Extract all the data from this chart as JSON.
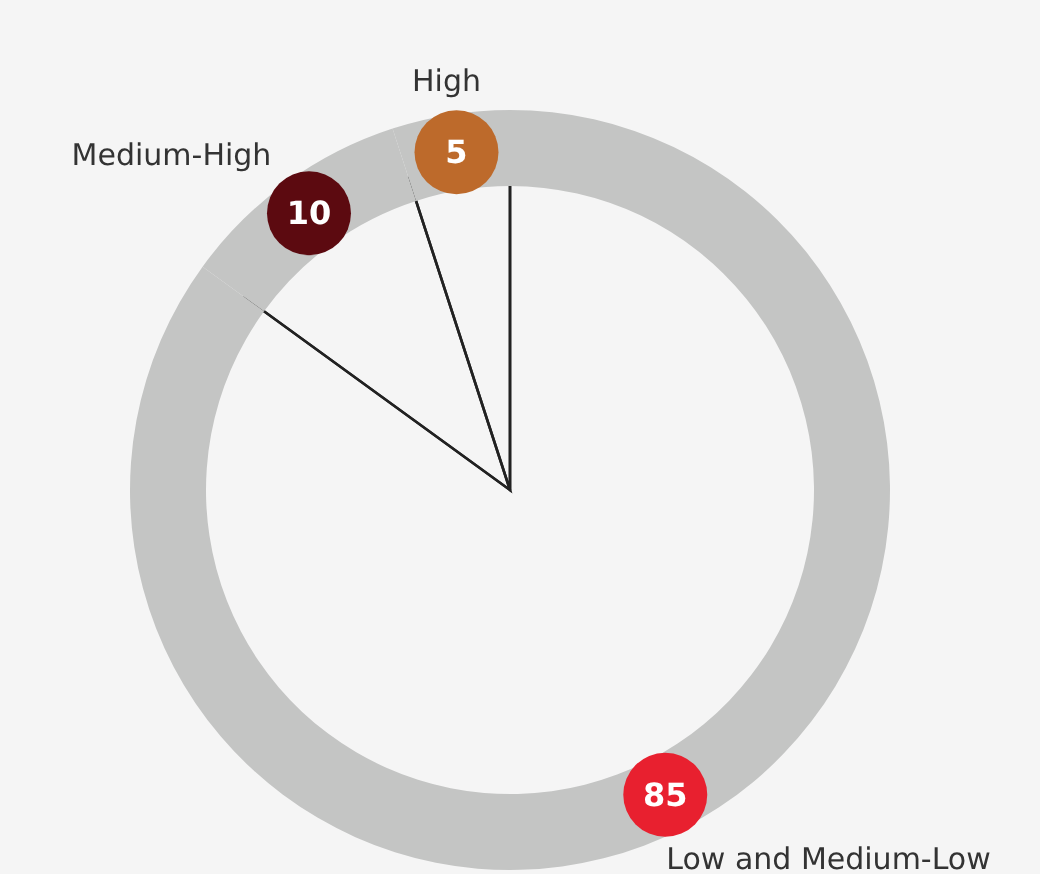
{
  "chart_data": {
    "type": "donut",
    "categories": [
      "High",
      "Medium-High",
      "Low and Medium-Low"
    ],
    "values": [
      5,
      10,
      85
    ],
    "colors": [
      "#c4c5c4",
      "#c4c5c4",
      "#c4c5c4"
    ],
    "data_labels": true
  }
}
